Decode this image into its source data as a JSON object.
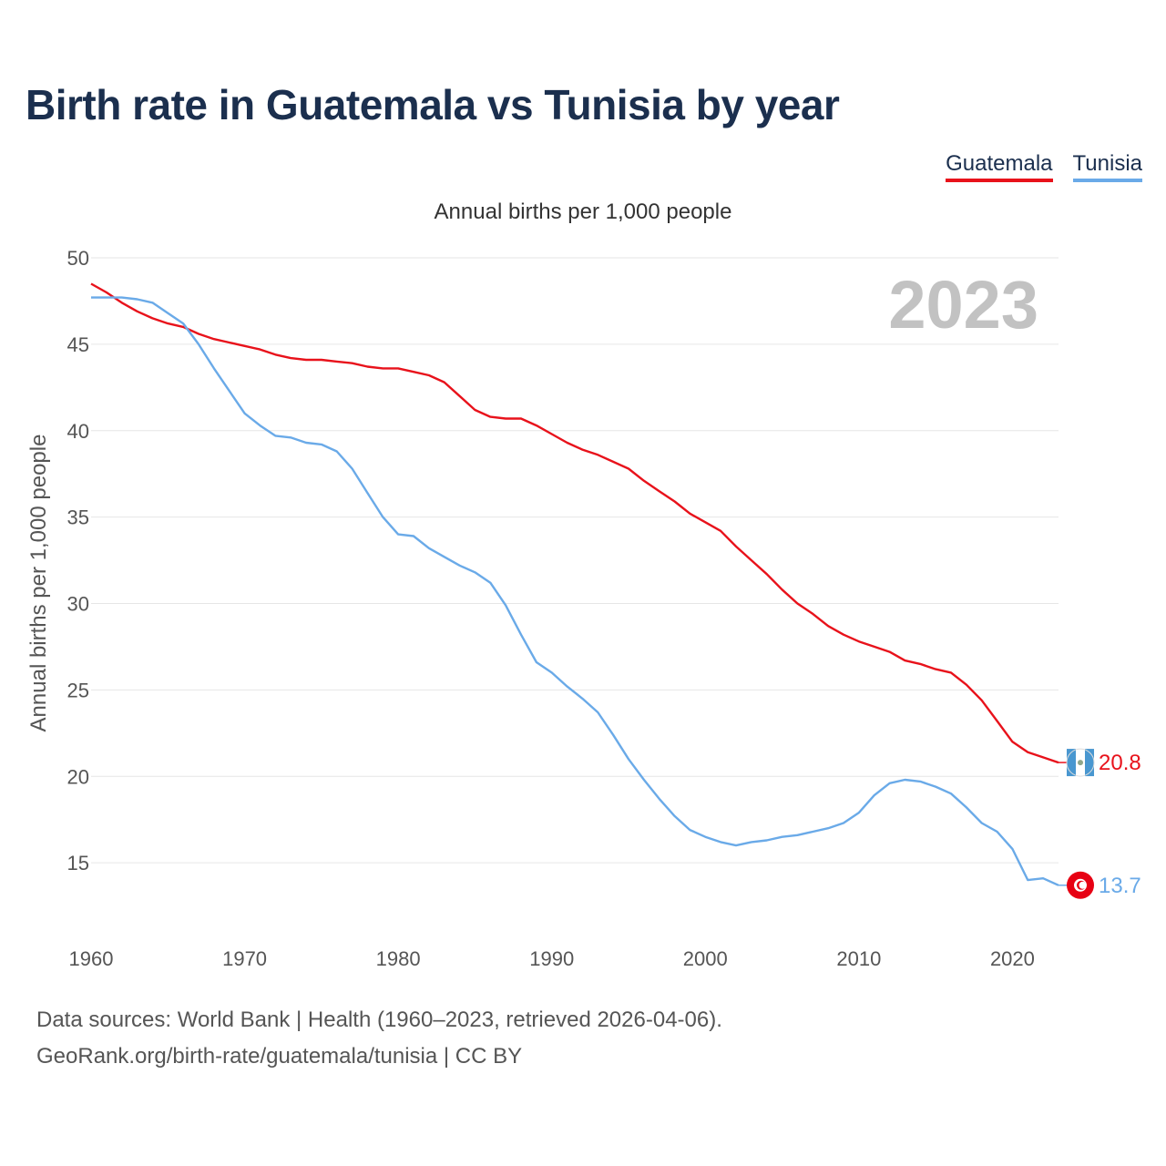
{
  "title": "Birth rate in Guatemala vs Tunisia by year",
  "legend": [
    {
      "label": "Guatemala",
      "color": "#e8121b"
    },
    {
      "label": "Tunisia",
      "color": "#6aaae8"
    }
  ],
  "footer": {
    "line1": "Data sources: World Bank | Health (1960–2023, retrieved 2026-04-06).",
    "line2": "GeoRank.org/birth-rate/guatemala/tunisia | CC BY"
  },
  "chart_data": {
    "type": "line",
    "title": "Birth rate in Guatemala vs Tunisia by year",
    "subtitle": "Annual births per 1,000 people",
    "ylabel": "Annual births per 1,000 people",
    "xlabel": "",
    "watermark": "2023",
    "xlim": [
      1960,
      2023
    ],
    "ylim": [
      10,
      50
    ],
    "xticks": [
      1960,
      1970,
      1980,
      1990,
      2000,
      2010,
      2020
    ],
    "yticks": [
      15,
      20,
      25,
      30,
      35,
      40,
      45,
      50
    ],
    "x": [
      1960,
      1961,
      1962,
      1963,
      1964,
      1965,
      1966,
      1967,
      1968,
      1969,
      1970,
      1971,
      1972,
      1973,
      1974,
      1975,
      1976,
      1977,
      1978,
      1979,
      1980,
      1981,
      1982,
      1983,
      1984,
      1985,
      1986,
      1987,
      1988,
      1989,
      1990,
      1991,
      1992,
      1993,
      1994,
      1995,
      1996,
      1997,
      1998,
      1999,
      2000,
      2001,
      2002,
      2003,
      2004,
      2005,
      2006,
      2007,
      2008,
      2009,
      2010,
      2011,
      2012,
      2013,
      2014,
      2015,
      2016,
      2017,
      2018,
      2019,
      2020,
      2021,
      2022,
      2023
    ],
    "series": [
      {
        "name": "Guatemala",
        "color": "#e8121b",
        "end_label": "20.8",
        "values": [
          48.5,
          48.0,
          47.4,
          46.9,
          46.5,
          46.2,
          46.0,
          45.6,
          45.3,
          45.1,
          44.9,
          44.7,
          44.4,
          44.2,
          44.1,
          44.1,
          44.0,
          43.9,
          43.7,
          43.6,
          43.6,
          43.4,
          43.2,
          42.8,
          42.0,
          41.2,
          40.8,
          40.7,
          40.7,
          40.3,
          39.8,
          39.3,
          38.9,
          38.6,
          38.2,
          37.8,
          37.1,
          36.5,
          35.9,
          35.2,
          34.7,
          34.2,
          33.3,
          32.5,
          31.7,
          30.8,
          30.0,
          29.4,
          28.7,
          28.2,
          27.8,
          27.5,
          27.2,
          26.7,
          26.5,
          26.2,
          26.0,
          25.3,
          24.4,
          23.2,
          22.0,
          21.4,
          21.1,
          20.8
        ]
      },
      {
        "name": "Tunisia",
        "color": "#6aaae8",
        "end_label": "13.7",
        "values": [
          47.7,
          47.7,
          47.7,
          47.6,
          47.4,
          46.8,
          46.2,
          45.0,
          43.6,
          42.3,
          41.0,
          40.3,
          39.7,
          39.6,
          39.3,
          39.2,
          38.8,
          37.8,
          36.4,
          35.0,
          34.0,
          33.9,
          33.2,
          32.7,
          32.2,
          31.8,
          31.2,
          29.9,
          28.2,
          26.6,
          26.0,
          25.2,
          24.5,
          23.7,
          22.4,
          21.0,
          19.8,
          18.7,
          17.7,
          16.9,
          16.5,
          16.2,
          16.0,
          16.2,
          16.3,
          16.5,
          16.6,
          16.8,
          17.0,
          17.3,
          17.9,
          18.9,
          19.6,
          19.8,
          19.7,
          19.4,
          19.0,
          18.2,
          17.3,
          16.8,
          15.8,
          14.0,
          14.1,
          13.7
        ]
      }
    ]
  }
}
